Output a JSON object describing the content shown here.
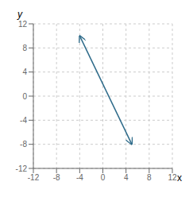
{
  "chart_data": {
    "type": "line",
    "x": [
      -4.0,
      5.0
    ],
    "values": [
      10.0,
      -8.0
    ],
    "color": "#2e6b8a",
    "marker": "arrow",
    "xlabel": "x",
    "ylabel": "y",
    "xlim": [
      -12,
      12
    ],
    "ylim": [
      -12,
      12
    ],
    "xticks": [
      -12,
      -8,
      -4,
      0,
      4,
      8,
      12
    ],
    "yticks": [
      -12,
      -8,
      -4,
      0,
      4,
      8,
      12
    ],
    "grid": true
  }
}
